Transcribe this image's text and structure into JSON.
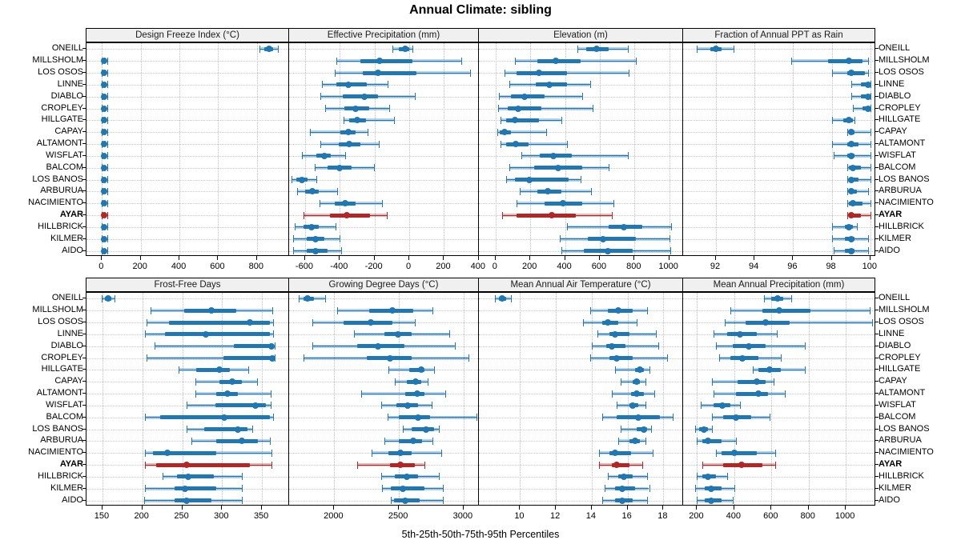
{
  "title": "Annual Climate: sibling",
  "caption": "5th-25th-50th-75th-95th Percentiles",
  "stations": [
    "ONEILL",
    "MILLSHOLM",
    "LOS OSOS",
    "LINNE",
    "DIABLO",
    "CROPLEY",
    "HILLGATE",
    "CAPAY",
    "ALTAMONT",
    "WISFLAT",
    "BALCOM",
    "LOS BANOS",
    "ARBURUA",
    "NACIMIENTO",
    "AYAR",
    "HILLBRICK",
    "KILMER",
    "AIDO"
  ],
  "highlight_station": "AYAR",
  "colors": {
    "series_blue": "#1f77b4",
    "band_blue": "rgba(31,119,180,0.32)",
    "highlight_red": "#b32626",
    "band_red": "rgba(179,38,38,0.32)",
    "grid": "#c8c8c8",
    "strip_bg": "#f0f0f0",
    "panel_border": "#000000"
  },
  "chart_data": {
    "type": "percentile-dotplot",
    "layout": "2 rows x 4 columns, shared station y-axis, 18 stations per panel",
    "percentile_labels": [
      "5th",
      "25th",
      "50th",
      "75th",
      "95th"
    ],
    "legend_note": "thin whisker with end caps = 5th-95th, translucent band = 5th-95th, thick bar = 25th-75th, dot = median; AYAR highlighted in red",
    "panels": [
      {
        "id": "design-freeze-index",
        "title": "Design Freeze Index (°C)",
        "row": 0,
        "col": 0,
        "ticks": [
          0,
          200,
          400,
          600,
          800
        ],
        "domain": [
          -80,
          966
        ],
        "values": [
          [
            815,
            838,
            862,
            884,
            908
          ],
          [
            0,
            4,
            10,
            17,
            26
          ],
          [
            0,
            4,
            10,
            17,
            26
          ],
          [
            0,
            4,
            10,
            17,
            26
          ],
          [
            0,
            4,
            10,
            17,
            26
          ],
          [
            0,
            4,
            10,
            17,
            26
          ],
          [
            0,
            4,
            10,
            17,
            26
          ],
          [
            0,
            4,
            10,
            17,
            26
          ],
          [
            0,
            4,
            10,
            17,
            26
          ],
          [
            0,
            4,
            10,
            17,
            26
          ],
          [
            0,
            4,
            10,
            17,
            26
          ],
          [
            0,
            4,
            10,
            17,
            26
          ],
          [
            0,
            4,
            10,
            17,
            26
          ],
          [
            0,
            4,
            10,
            17,
            26
          ],
          [
            0,
            4,
            10,
            17,
            26
          ],
          [
            0,
            4,
            10,
            17,
            26
          ],
          [
            0,
            4,
            10,
            17,
            26
          ],
          [
            0,
            4,
            10,
            17,
            26
          ]
        ]
      },
      {
        "id": "effective-precipitation",
        "title": "Effective Precipitation (mm)",
        "row": 0,
        "col": 1,
        "ticks": [
          -600,
          -400,
          -200,
          0,
          200,
          400
        ],
        "domain": [
          -692,
          401
        ],
        "values": [
          [
            -95,
            -60,
            -25,
            0,
            20
          ],
          [
            -420,
            -280,
            -170,
            20,
            300
          ],
          [
            -430,
            -270,
            -180,
            40,
            350
          ],
          [
            -505,
            -420,
            -350,
            -245,
            -125
          ],
          [
            -510,
            -385,
            -260,
            -180,
            30
          ],
          [
            -485,
            -375,
            -310,
            -230,
            -115
          ],
          [
            -380,
            -345,
            -300,
            -250,
            -90
          ],
          [
            -570,
            -395,
            -350,
            -310,
            -240
          ],
          [
            -510,
            -405,
            -345,
            -280,
            -175
          ],
          [
            -620,
            -535,
            -490,
            -450,
            -370
          ],
          [
            -545,
            -470,
            -400,
            -330,
            -205
          ],
          [
            -680,
            -650,
            -620,
            -585,
            -535
          ],
          [
            -645,
            -600,
            -560,
            -520,
            -415
          ],
          [
            -515,
            -430,
            -370,
            -310,
            -155
          ],
          [
            -610,
            -455,
            -360,
            -225,
            -130
          ],
          [
            -660,
            -610,
            -565,
            -520,
            -425
          ],
          [
            -670,
            -590,
            -540,
            -490,
            -400
          ],
          [
            -670,
            -590,
            -540,
            -470,
            -390
          ]
        ]
      },
      {
        "id": "elevation",
        "title": "Elevation (m)",
        "row": 0,
        "col": 2,
        "ticks": [
          0,
          200,
          400,
          600,
          800,
          1000
        ],
        "domain": [
          -96,
          1080
        ],
        "values": [
          [
            470,
            520,
            580,
            650,
            760
          ],
          [
            110,
            240,
            345,
            490,
            810
          ],
          [
            50,
            120,
            250,
            410,
            765
          ],
          [
            80,
            230,
            310,
            410,
            545
          ],
          [
            20,
            90,
            165,
            280,
            500
          ],
          [
            15,
            70,
            130,
            265,
            560
          ],
          [
            30,
            60,
            110,
            250,
            380
          ],
          [
            10,
            25,
            50,
            90,
            290
          ],
          [
            30,
            60,
            115,
            190,
            410
          ],
          [
            150,
            255,
            335,
            440,
            760
          ],
          [
            80,
            220,
            360,
            500,
            650
          ],
          [
            60,
            110,
            195,
            420,
            490
          ],
          [
            140,
            240,
            300,
            380,
            550
          ],
          [
            120,
            280,
            390,
            500,
            680
          ],
          [
            40,
            120,
            325,
            460,
            670
          ],
          [
            410,
            650,
            740,
            845,
            1010
          ],
          [
            370,
            530,
            620,
            810,
            1000
          ],
          [
            380,
            510,
            645,
            790,
            1005
          ]
        ]
      },
      {
        "id": "fraction-ppt-as-rain",
        "title": "Fraction of Annual PPT as Rain",
        "row": 0,
        "col": 3,
        "ticks": [
          92,
          94,
          96,
          98,
          100
        ],
        "domain": [
          90.3,
          100.3
        ],
        "values": [
          [
            91.0,
            91.7,
            92.0,
            92.3,
            92.9
          ],
          [
            95.9,
            97.8,
            98.9,
            99.6,
            99.9
          ],
          [
            98.0,
            98.8,
            99.0,
            99.7,
            99.9
          ],
          [
            99.0,
            99.5,
            99.9,
            100,
            100
          ],
          [
            99.0,
            99.5,
            99.9,
            100,
            100
          ],
          [
            99.1,
            99.6,
            99.9,
            100,
            100
          ],
          [
            98.0,
            98.6,
            98.9,
            99.1,
            99.2
          ],
          [
            98.8,
            98.9,
            99.0,
            99.2,
            100
          ],
          [
            98.0,
            98.8,
            99.0,
            99.4,
            100
          ],
          [
            98.1,
            98.8,
            99.0,
            99.2,
            100
          ],
          [
            98.8,
            98.9,
            99.1,
            99.5,
            100
          ],
          [
            98.8,
            98.9,
            99.0,
            99.4,
            100
          ],
          [
            98.8,
            98.9,
            99.0,
            99.3,
            99.9
          ],
          [
            98.8,
            98.9,
            99.1,
            99.6,
            100
          ],
          [
            98.8,
            98.9,
            99.0,
            99.5,
            100
          ],
          [
            98.0,
            98.7,
            98.9,
            99.1,
            99.3
          ],
          [
            98.0,
            98.7,
            99.0,
            99.2,
            99.9
          ],
          [
            98.1,
            98.7,
            99.0,
            99.2,
            99.9
          ]
        ]
      },
      {
        "id": "frost-free-days",
        "title": "Frost-Free Days",
        "row": 1,
        "col": 0,
        "ticks": [
          150,
          200,
          250,
          300,
          350
        ],
        "domain": [
          130,
          384
        ],
        "values": [
          [
            149,
            153,
            157,
            161,
            165
          ],
          [
            210,
            252,
            287,
            318,
            363
          ],
          [
            205,
            233,
            335,
            360,
            364
          ],
          [
            203,
            228,
            280,
            360,
            364
          ],
          [
            215,
            315,
            362,
            365,
            366
          ],
          [
            205,
            302,
            363,
            365,
            366
          ],
          [
            245,
            268,
            297,
            310,
            333
          ],
          [
            267,
            297,
            313,
            325,
            344
          ],
          [
            267,
            293,
            307,
            320,
            361
          ],
          [
            255,
            292,
            342,
            355,
            361
          ],
          [
            203,
            222,
            303,
            360,
            364
          ],
          [
            255,
            278,
            320,
            332,
            338
          ],
          [
            262,
            293,
            325,
            345,
            360
          ],
          [
            203,
            213,
            231,
            293,
            362
          ],
          [
            203,
            217,
            255,
            335,
            362
          ],
          [
            225,
            243,
            258,
            290,
            325
          ],
          [
            203,
            240,
            253,
            293,
            325
          ],
          [
            202,
            240,
            255,
            287,
            325
          ]
        ]
      },
      {
        "id": "growing-degree-days",
        "title": "Growing Degree Days (°C)",
        "row": 1,
        "col": 1,
        "ticks": [
          2000,
          2500,
          3000
        ],
        "domain": [
          1651,
          3118
        ],
        "values": [
          [
            1725,
            1760,
            1795,
            1845,
            1930
          ],
          [
            2020,
            2270,
            2450,
            2610,
            2760
          ],
          [
            1830,
            2070,
            2280,
            2450,
            2620
          ],
          [
            2150,
            2390,
            2490,
            2600,
            2890
          ],
          [
            1830,
            2180,
            2340,
            2540,
            2930
          ],
          [
            1760,
            2250,
            2430,
            2600,
            3040
          ],
          [
            2420,
            2580,
            2670,
            2700,
            2770
          ],
          [
            2470,
            2560,
            2630,
            2670,
            2720
          ],
          [
            2210,
            2550,
            2640,
            2700,
            2860
          ],
          [
            2360,
            2480,
            2570,
            2650,
            2750
          ],
          [
            2410,
            2500,
            2650,
            2740,
            3100
          ],
          [
            2530,
            2600,
            2710,
            2770,
            2810
          ],
          [
            2390,
            2500,
            2610,
            2680,
            2760
          ],
          [
            2290,
            2420,
            2510,
            2600,
            2830
          ],
          [
            2180,
            2430,
            2510,
            2620,
            2700
          ],
          [
            2360,
            2470,
            2560,
            2650,
            2810
          ],
          [
            2370,
            2440,
            2530,
            2700,
            2840
          ],
          [
            2440,
            2460,
            2550,
            2660,
            2840
          ]
        ]
      },
      {
        "id": "mean-annual-air-temperature",
        "title": "Mean Annual Air Temperature (°C)",
        "row": 1,
        "col": 2,
        "ticks": [
          10,
          12,
          14,
          16,
          18
        ],
        "domain": [
          7.7,
          19.1
        ],
        "values": [
          [
            8.6,
            8.8,
            9.0,
            9.2,
            9.5
          ],
          [
            13.9,
            14.9,
            15.5,
            16.3,
            17.1
          ],
          [
            13.5,
            14.6,
            14.9,
            15.5,
            16.5
          ],
          [
            14.3,
            15.0,
            15.3,
            16.1,
            17.6
          ],
          [
            14.0,
            14.8,
            15.1,
            15.9,
            17.7
          ],
          [
            13.9,
            15.0,
            15.4,
            16.3,
            18.2
          ],
          [
            15.3,
            16.4,
            16.7,
            16.9,
            17.2
          ],
          [
            15.6,
            16.3,
            16.5,
            16.7,
            17.0
          ],
          [
            15.1,
            16.2,
            16.5,
            16.9,
            17.5
          ],
          [
            15.4,
            16.1,
            16.3,
            16.6,
            17.0
          ],
          [
            14.6,
            15.4,
            16.6,
            17.8,
            18.5
          ],
          [
            15.6,
            16.5,
            16.9,
            17.1,
            17.3
          ],
          [
            15.5,
            16.1,
            16.4,
            16.7,
            17.0
          ],
          [
            14.4,
            15.0,
            15.3,
            16.2,
            17.4
          ],
          [
            14.4,
            15.1,
            15.4,
            16.1,
            16.8
          ],
          [
            14.9,
            15.5,
            15.8,
            16.3,
            17.1
          ],
          [
            14.7,
            15.3,
            15.7,
            16.4,
            17.2
          ],
          [
            14.6,
            15.3,
            15.7,
            16.3,
            17.1
          ]
        ]
      },
      {
        "id": "mean-annual-precipitation",
        "title": "Mean Annual Precipitation (mm)",
        "row": 1,
        "col": 3,
        "ticks": [
          200,
          400,
          600,
          800,
          1000
        ],
        "domain": [
          125,
          1163
        ],
        "values": [
          [
            560,
            600,
            635,
            665,
            705
          ],
          [
            380,
            550,
            640,
            810,
            1130
          ],
          [
            350,
            460,
            570,
            700,
            1140
          ],
          [
            290,
            360,
            430,
            520,
            630
          ],
          [
            300,
            390,
            480,
            570,
            780
          ],
          [
            320,
            380,
            445,
            530,
            650
          ],
          [
            500,
            530,
            590,
            650,
            780
          ],
          [
            280,
            420,
            520,
            570,
            610
          ],
          [
            290,
            410,
            530,
            580,
            670
          ],
          [
            220,
            290,
            335,
            380,
            430
          ],
          [
            280,
            340,
            410,
            490,
            590
          ],
          [
            190,
            210,
            235,
            260,
            280
          ],
          [
            200,
            230,
            260,
            330,
            410
          ],
          [
            300,
            330,
            400,
            520,
            620
          ],
          [
            230,
            340,
            440,
            550,
            620
          ],
          [
            200,
            230,
            260,
            300,
            360
          ],
          [
            190,
            240,
            275,
            330,
            400
          ],
          [
            200,
            240,
            275,
            330,
            390
          ]
        ]
      }
    ]
  }
}
